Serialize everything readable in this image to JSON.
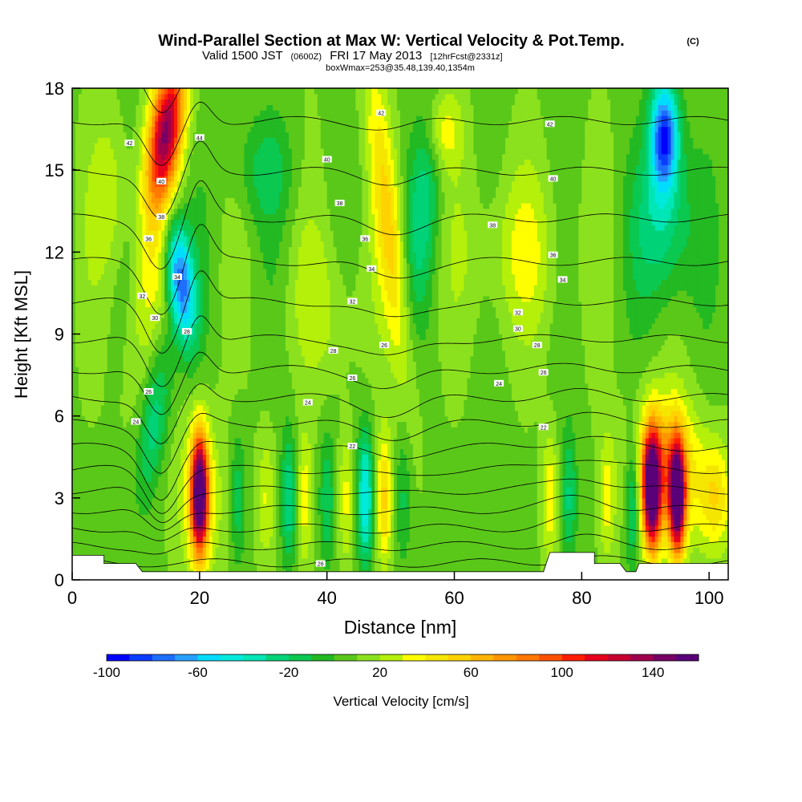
{
  "chart_data": {
    "type": "heatmap",
    "title": "Wind-Parallel Section at Max W: Vertical Velocity & Pot.Temp.",
    "title_mark": "(C)",
    "subtitle_valid": "Valid 1500 JST",
    "subtitle_utc": "(0600Z)",
    "subtitle_date": "FRI 17 May 2013",
    "subtitle_fcst": "[12hrFcst@2331z]",
    "subtitle2": "boxWmax=253@35.48,139.40,1354m",
    "xlabel": "Distance [nm]",
    "ylabel": "Height [Kft MSL]",
    "xlim": [
      0,
      103
    ],
    "ylim": [
      0,
      18
    ],
    "x_ticks": [
      "0",
      "20",
      "40",
      "60",
      "80",
      "100"
    ],
    "y_ticks": [
      "0",
      "3",
      "6",
      "9",
      "12",
      "15",
      "18"
    ],
    "colorbar": {
      "label": "Vertical Velocity [cm/s]",
      "tick_labels": [
        "-100",
        "-60",
        "-20",
        "20",
        "60",
        "100",
        "140"
      ],
      "range": [
        -100,
        160
      ],
      "colors": [
        "#0000ff",
        "#0a3cff",
        "#1e6eff",
        "#28a0ff",
        "#00dcff",
        "#00eadc",
        "#00e6b4",
        "#00d278",
        "#0ac850",
        "#23b923",
        "#5ac819",
        "#8ce11e",
        "#b4f00a",
        "#ffff00",
        "#f5e600",
        "#ffd200",
        "#ffb400",
        "#ff9600",
        "#ff7800",
        "#ff5000",
        "#ff1e00",
        "#e6001e",
        "#c80032",
        "#a0004b",
        "#780064",
        "#5a0078"
      ]
    },
    "theta_labels": [
      {
        "text": "42",
        "x": 48.5,
        "y": 17.1
      },
      {
        "text": "44",
        "x": 20,
        "y": 16.2
      },
      {
        "text": "42",
        "x": 9,
        "y": 16.0
      },
      {
        "text": "42",
        "x": 75,
        "y": 16.7
      },
      {
        "text": "40",
        "x": 40,
        "y": 15.4
      },
      {
        "text": "40",
        "x": 75.5,
        "y": 14.7
      },
      {
        "text": "40",
        "x": 14,
        "y": 14.6
      },
      {
        "text": "38",
        "x": 42,
        "y": 13.8
      },
      {
        "text": "38",
        "x": 14,
        "y": 13.3
      },
      {
        "text": "38",
        "x": 66,
        "y": 13.0
      },
      {
        "text": "36",
        "x": 12,
        "y": 12.5
      },
      {
        "text": "36",
        "x": 46,
        "y": 12.5
      },
      {
        "text": "36",
        "x": 75.5,
        "y": 11.9
      },
      {
        "text": "34",
        "x": 16.5,
        "y": 11.1
      },
      {
        "text": "34",
        "x": 47,
        "y": 11.4
      },
      {
        "text": "34",
        "x": 77,
        "y": 11.0
      },
      {
        "text": "32",
        "x": 11,
        "y": 10.4
      },
      {
        "text": "32",
        "x": 44,
        "y": 10.2
      },
      {
        "text": "32",
        "x": 70,
        "y": 9.8
      },
      {
        "text": "30",
        "x": 13,
        "y": 9.6
      },
      {
        "text": "30",
        "x": 70,
        "y": 9.2
      },
      {
        "text": "28",
        "x": 18,
        "y": 9.1
      },
      {
        "text": "28",
        "x": 41,
        "y": 8.4
      },
      {
        "text": "28",
        "x": 73,
        "y": 8.6
      },
      {
        "text": "26",
        "x": 44,
        "y": 7.4
      },
      {
        "text": "26",
        "x": 49,
        "y": 8.6
      },
      {
        "text": "26",
        "x": 74,
        "y": 7.6
      },
      {
        "text": "26",
        "x": 12,
        "y": 6.9
      },
      {
        "text": "24",
        "x": 37,
        "y": 6.5
      },
      {
        "text": "24",
        "x": 67,
        "y": 7.2
      },
      {
        "text": "24",
        "x": 10,
        "y": 5.8
      },
      {
        "text": "22",
        "x": 44,
        "y": 4.9
      },
      {
        "text": "22",
        "x": 74,
        "y": 5.6
      },
      {
        "text": "26",
        "x": 39,
        "y": 0.6
      }
    ]
  }
}
